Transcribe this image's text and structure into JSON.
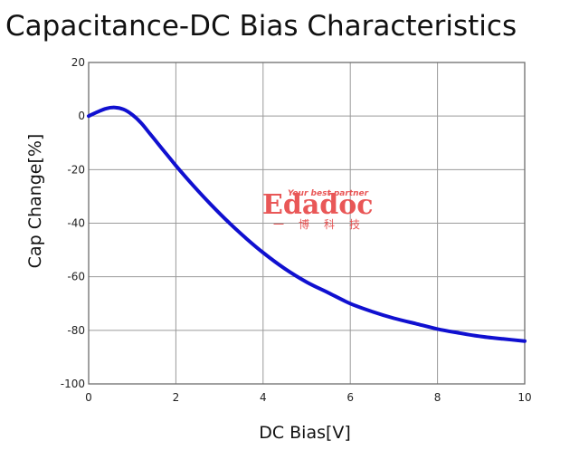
{
  "chart_data": {
    "type": "line",
    "title": "Capacitance-DC Bias Characteristics",
    "xlabel": "DC Bias[V]",
    "ylabel": "Cap Change[%]",
    "xlim": [
      0,
      10
    ],
    "ylim": [
      -100,
      20
    ],
    "x_ticks": [
      0,
      2,
      4,
      6,
      8,
      10
    ],
    "y_ticks": [
      20,
      0,
      -20,
      -40,
      -60,
      -80,
      -100
    ],
    "grid": true,
    "series": [
      {
        "color": "#1010d0",
        "x": [
          0,
          0.2,
          0.4,
          0.6,
          0.8,
          1.0,
          1.2,
          1.4,
          1.6,
          1.8,
          2.0,
          2.4,
          2.8,
          3.2,
          3.6,
          4.0,
          4.5,
          5.0,
          5.5,
          6.0,
          6.5,
          7.0,
          7.5,
          8.0,
          8.5,
          9.0,
          9.5,
          10.0
        ],
        "y": [
          0,
          1.5,
          2.8,
          3.2,
          2.5,
          0.5,
          -2.5,
          -6.5,
          -10.5,
          -14.5,
          -18.5,
          -26,
          -33,
          -39.5,
          -45.5,
          -51,
          -57,
          -62,
          -66,
          -70,
          -73,
          -75.5,
          -77.5,
          -79.5,
          -81,
          -82.3,
          -83.2,
          -84
        ]
      }
    ]
  },
  "watermark": {
    "brand": "Edadoc",
    "tagline": "Your best partner",
    "chinese": [
      "一",
      "博",
      "科",
      "技"
    ],
    "color": "#e63a3a"
  }
}
